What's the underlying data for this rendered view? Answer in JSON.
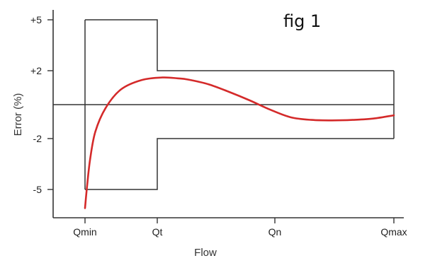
{
  "chart_data": {
    "type": "line",
    "annotation": "fig 1",
    "xlabel": "Flow",
    "ylabel": "Error (%)",
    "x_ticks": [
      "Qmin",
      "Qt",
      "Qn",
      "Qmax"
    ],
    "y_ticks": [
      {
        "value": 5,
        "label": "+5"
      },
      {
        "value": 2,
        "label": "+2"
      },
      {
        "value": -2,
        "label": "-2"
      },
      {
        "value": -5,
        "label": "-5"
      }
    ],
    "ylim": [
      -6.2,
      5.3
    ],
    "grid": false,
    "envelope": {
      "values": [
        {
          "x": "Qmin",
          "upper": 5,
          "lower": -5
        },
        {
          "x": "Qt",
          "upper": 5,
          "lower": -5
        },
        {
          "x": "Qt",
          "upper": 2,
          "lower": -2
        },
        {
          "x": "Qmax",
          "upper": 2,
          "lower": -2
        }
      ],
      "color": "#333333"
    },
    "reference_line": {
      "value": 0,
      "color": "#333333"
    },
    "series": [
      {
        "color": "#d42a2a",
        "points": [
          [
            0.0,
            -6.1
          ],
          [
            0.02,
            -4.8
          ],
          [
            0.05,
            -3.2
          ],
          [
            0.1,
            -1.6
          ],
          [
            0.2,
            -0.2
          ],
          [
            0.35,
            0.9
          ],
          [
            0.55,
            1.45
          ],
          [
            0.75,
            1.6
          ],
          [
            0.9,
            1.55
          ],
          [
            1.0,
            1.48
          ],
          [
            1.2,
            1.2
          ],
          [
            1.4,
            0.75
          ],
          [
            1.6,
            0.25
          ],
          [
            1.8,
            -0.3
          ],
          [
            2.0,
            -0.75
          ],
          [
            2.2,
            -0.9
          ],
          [
            2.4,
            -0.93
          ],
          [
            2.6,
            -0.9
          ],
          [
            2.8,
            -0.82
          ],
          [
            3.0,
            -0.63
          ]
        ]
      }
    ]
  }
}
